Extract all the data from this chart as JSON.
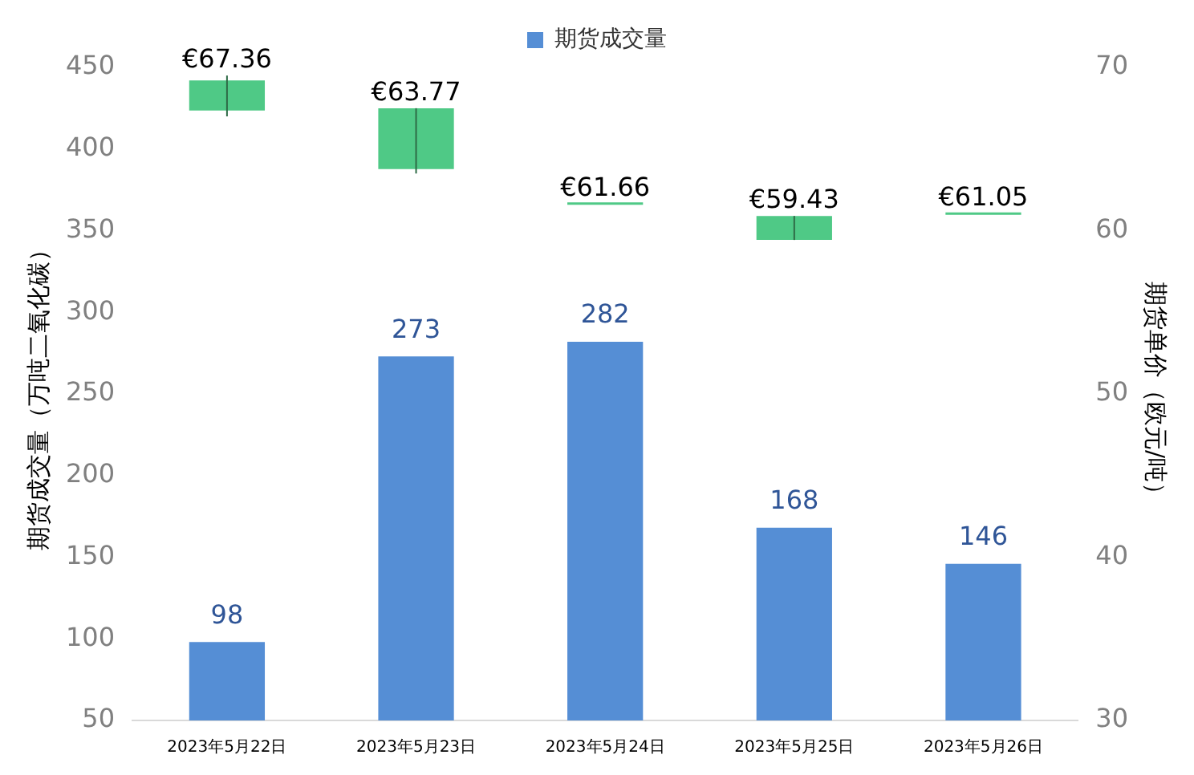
{
  "chart_data": {
    "type": "bar",
    "categories": [
      "2023年5月22日",
      "2023年5月23日",
      "2023年5月24日",
      "2023年5月25日",
      "2023年5月26日"
    ],
    "ylabel": "期货成交量（万吨二氧化碳）",
    "y2label": "期货单价（欧元/吨）",
    "ylim": [
      50,
      450
    ],
    "yticks": [
      50,
      100,
      150,
      200,
      250,
      300,
      350,
      400,
      450
    ],
    "y2lim": [
      30,
      70
    ],
    "y2ticks": [
      30,
      40,
      50,
      60,
      70
    ],
    "legend": "top",
    "grid": false,
    "series": [
      {
        "name": "期货成交量",
        "color": "#558ed5",
        "values": [
          98,
          273,
          282,
          168,
          146
        ],
        "data_labels": true
      },
      {
        "type": "candlestick",
        "axis": "y2",
        "color": "#4fc986",
        "ohlc": [
          [
            69.2,
            69.5,
            67.0,
            67.36
          ],
          [
            67.5,
            67.5,
            63.5,
            63.77
          ],
          [
            61.66,
            61.66,
            61.66,
            61.66
          ],
          [
            60.9,
            60.9,
            59.43,
            59.43
          ],
          [
            61.05,
            61.05,
            61.05,
            61.05
          ]
        ],
        "value_labels": [
          "€67.36",
          "€63.77",
          "€61.66",
          "€59.43",
          "€61.05"
        ]
      }
    ]
  }
}
